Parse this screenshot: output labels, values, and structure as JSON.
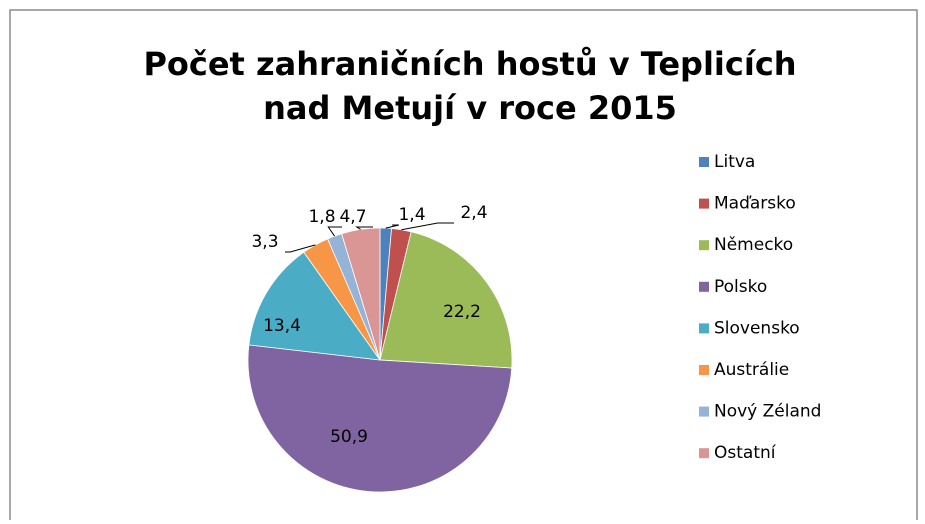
{
  "chart_data": {
    "type": "pie",
    "title": [
      "Počet zahraničních hostů v Teplicích",
      "nad Metují v roce 2015"
    ],
    "categories": [
      "Litva",
      "Maďarsko",
      "Německo",
      "Polsko",
      "Slovensko",
      "Austrálie",
      "Nový Zéland",
      "Ostatní"
    ],
    "values": [
      1.4,
      2.4,
      22.2,
      50.9,
      13.4,
      3.3,
      1.8,
      4.7
    ],
    "value_labels": [
      "1,4",
      "2,4",
      "22,2",
      "50,9",
      "13,4",
      "3,3",
      "1,8",
      "4,7"
    ],
    "colors": [
      "#4F81BD",
      "#C0504D",
      "#9BBB59",
      "#8064A2",
      "#4BACC6",
      "#F79646",
      "#95B3D7",
      "#D99694"
    ],
    "legend": "right"
  }
}
